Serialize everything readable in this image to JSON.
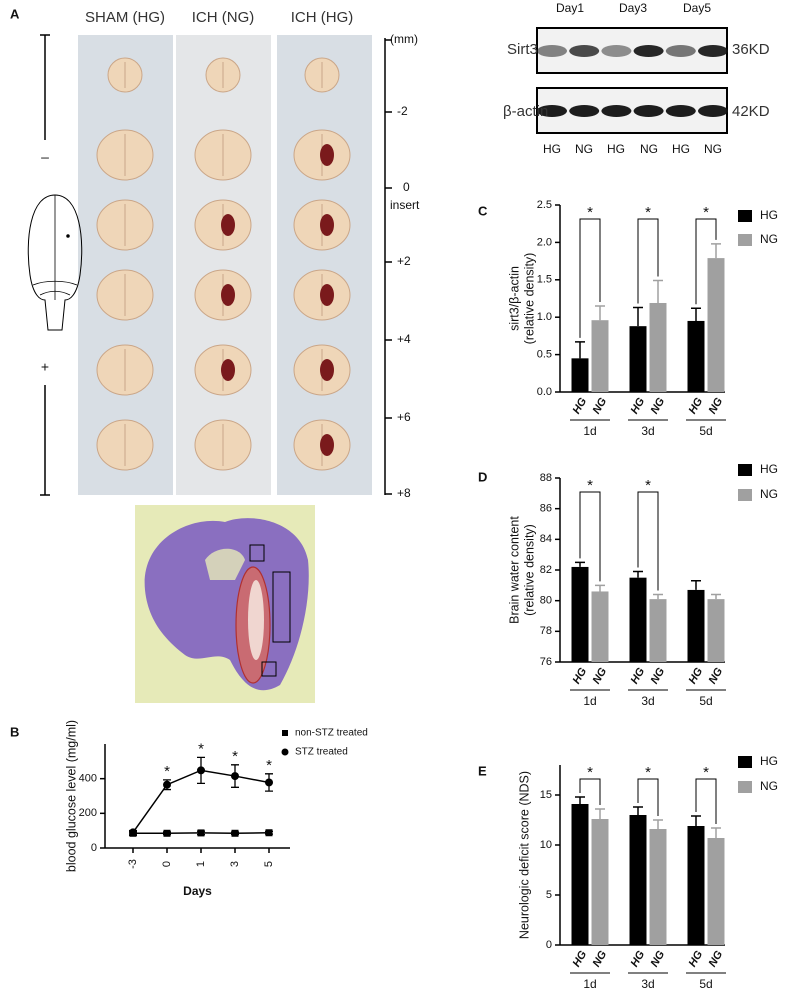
{
  "panel_a": {
    "label": "A",
    "columns": [
      "SHAM (HG)",
      "ICH (NG)",
      "ICH (HG)"
    ],
    "unit": "(mm)",
    "scale": [
      "-2",
      "0",
      "insert",
      "+2",
      "+4",
      "+6",
      "+8"
    ],
    "minus": "–",
    "plus": "+"
  },
  "blot": {
    "days": [
      "Day1",
      "Day3",
      "Day5"
    ],
    "rows": [
      {
        "name": "Sirt3",
        "size": "36KD"
      },
      {
        "name": "β-actin",
        "size": "42KD"
      }
    ],
    "lanes": [
      "HG",
      "NG",
      "HG",
      "NG",
      "HG",
      "NG"
    ]
  },
  "chart_data": [
    {
      "type": "line",
      "label": "B",
      "xlabel": "Days",
      "ylabel": "blood glucose level (mg/ml)",
      "categories": [
        "-3",
        "0",
        "1",
        "3",
        "5"
      ],
      "series": [
        {
          "name": "non-STZ treated",
          "color": "#000000",
          "marker": "square",
          "values": [
            85,
            85,
            87,
            85,
            88
          ],
          "errors": [
            12,
            8,
            10,
            7,
            8
          ]
        },
        {
          "name": "STZ treated",
          "color": "#000000",
          "marker": "circle",
          "values": [
            90,
            365,
            448,
            415,
            378
          ],
          "errors": [
            10,
            28,
            75,
            65,
            50
          ]
        }
      ],
      "significance": [
        null,
        "*",
        "*",
        "*",
        "*"
      ],
      "ylim": [
        0,
        600
      ],
      "yticks": [
        0,
        200,
        400
      ],
      "legend": "upper right"
    },
    {
      "type": "bar",
      "label": "C",
      "ylabel": [
        "sirt3/β-actin",
        "(relative density)"
      ],
      "categories": [
        "1d",
        "3d",
        "5d"
      ],
      "series": [
        {
          "name": "HG",
          "color": "#000000",
          "values": [
            0.45,
            0.88,
            0.95
          ],
          "errors": [
            0.22,
            0.25,
            0.17
          ]
        },
        {
          "name": "NG",
          "color": "#a0a0a0",
          "values": [
            0.96,
            1.19,
            1.79
          ],
          "errors": [
            0.19,
            0.3,
            0.19
          ]
        }
      ],
      "significance": [
        "*",
        "*",
        "*"
      ],
      "ylim": [
        0,
        2.5
      ],
      "yticks": [
        {
          "value": 0,
          "label": "0.0"
        },
        0.5,
        {
          "value": 1,
          "label": "1.0"
        },
        1.5,
        {
          "value": 2,
          "label": "2.0"
        },
        2.5
      ],
      "legend": "upper right"
    },
    {
      "type": "bar",
      "label": "D",
      "ylabel": [
        "Brain water content",
        "(relative density)"
      ],
      "categories": [
        "1d",
        "3d",
        "5d"
      ],
      "series": [
        {
          "name": "HG",
          "color": "#000000",
          "values": [
            82.2,
            81.5,
            80.7
          ],
          "errors": [
            0.3,
            0.4,
            0.6
          ]
        },
        {
          "name": "NG",
          "color": "#a0a0a0",
          "values": [
            80.6,
            80.1,
            80.1
          ],
          "errors": [
            0.4,
            0.3,
            0.3
          ]
        }
      ],
      "significance": [
        "*",
        "*",
        null
      ],
      "ylim": [
        76,
        88
      ],
      "yticks": [
        76,
        78,
        80,
        82,
        84,
        86,
        88
      ],
      "legend": "upper right"
    },
    {
      "type": "bar",
      "label": "E",
      "ylabel": [
        "Neurologic deficit score (NDS)"
      ],
      "categories": [
        "1d",
        "3d",
        "5d"
      ],
      "series": [
        {
          "name": "HG",
          "color": "#000000",
          "values": [
            14.1,
            13,
            11.9
          ],
          "errors": [
            0.7,
            0.8,
            1
          ]
        },
        {
          "name": "NG",
          "color": "#a0a0a0",
          "values": [
            12.6,
            11.6,
            10.7
          ],
          "errors": [
            1,
            0.9,
            1
          ]
        }
      ],
      "significance": [
        "*",
        "*",
        "*"
      ],
      "ylim": [
        0,
        18
      ],
      "yticks": [
        0,
        5,
        10,
        15
      ],
      "legend": "upper right"
    }
  ]
}
